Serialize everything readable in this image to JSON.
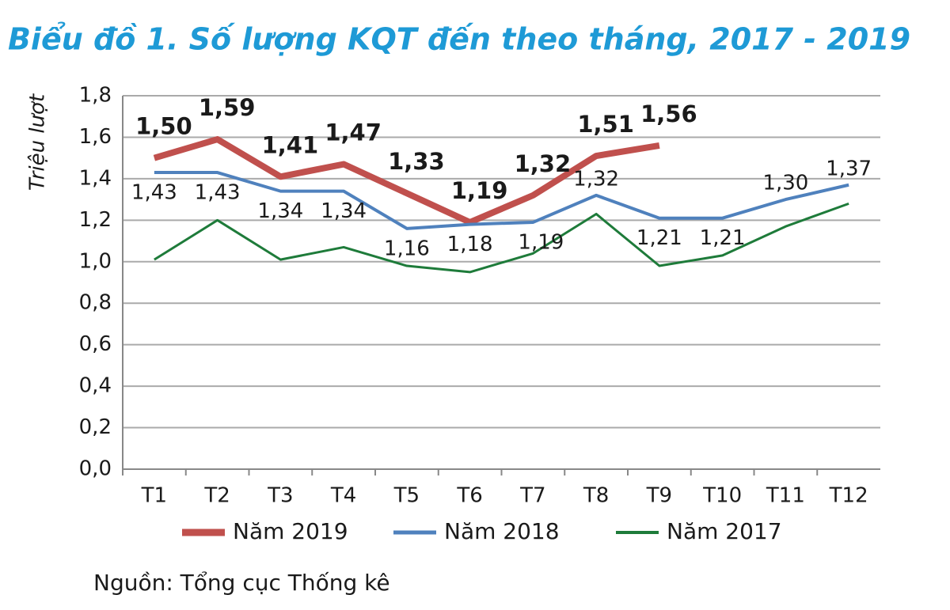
{
  "chart_data": {
    "type": "line",
    "title": "Biểu đồ 1. Số lượng KQT đến theo tháng, 2017 - 2019",
    "y_label": "Triệu lượt",
    "source": "Nguồn: Tổng cục Thống kê",
    "categories": [
      "T1",
      "T2",
      "T3",
      "T4",
      "T5",
      "T6",
      "T7",
      "T8",
      "T9",
      "T10",
      "T11",
      "T12"
    ],
    "series": [
      {
        "name": "Năm 2019",
        "color": "#c0504d",
        "values": [
          1.5,
          1.59,
          1.41,
          1.47,
          1.33,
          1.19,
          1.32,
          1.51,
          1.56,
          null,
          null,
          null
        ],
        "value_labels": [
          "1,50",
          "1,59",
          "1,41",
          "1,47",
          "1,33",
          "1,19",
          "1,32",
          "1,51",
          "1,56",
          null,
          null,
          null
        ]
      },
      {
        "name": "Năm 2018",
        "color": "#4f81bd",
        "values": [
          1.43,
          1.43,
          1.34,
          1.34,
          1.16,
          1.18,
          1.19,
          1.32,
          1.21,
          1.21,
          1.3,
          1.37
        ],
        "value_labels": [
          "1,43",
          "1,43",
          "1,34",
          "1,34",
          "1,16",
          "1,18",
          "1,19",
          "1,32",
          "1,21",
          "1,21",
          "1,30",
          "1,37"
        ]
      },
      {
        "name": "Năm 2017",
        "color": "#1e7b3a",
        "values": [
          1.01,
          1.2,
          1.01,
          1.07,
          0.98,
          0.95,
          1.04,
          1.23,
          0.98,
          1.03,
          1.17,
          1.28
        ]
      }
    ],
    "ylim": [
      0,
      1.8
    ],
    "yticks": [
      {
        "value": 0,
        "label": "0,0"
      },
      {
        "value": 0.2,
        "label": "0,2"
      },
      {
        "value": 0.4,
        "label": "0,4"
      },
      {
        "value": 0.6,
        "label": "0,6"
      },
      {
        "value": 0.8,
        "label": "0,8"
      },
      {
        "value": 1.0,
        "label": "1,0"
      },
      {
        "value": 1.2,
        "label": "1,2"
      },
      {
        "value": 1.4,
        "label": "1,4"
      },
      {
        "value": 1.6,
        "label": "1,6"
      },
      {
        "value": 1.8,
        "label": "1,8"
      }
    ],
    "grid": true,
    "legend": "bottom"
  }
}
